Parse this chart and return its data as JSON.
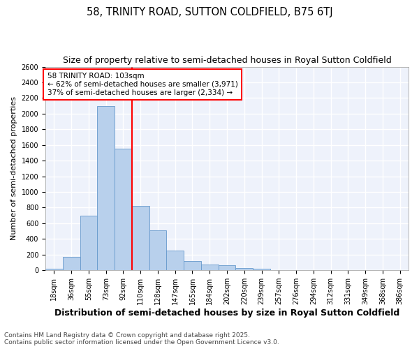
{
  "title": "58, TRINITY ROAD, SUTTON COLDFIELD, B75 6TJ",
  "subtitle": "Size of property relative to semi-detached houses in Royal Sutton Coldfield",
  "xlabel": "Distribution of semi-detached houses by size in Royal Sutton Coldfield",
  "ylabel": "Number of semi-detached properties",
  "footer": "Contains HM Land Registry data © Crown copyright and database right 2025.\nContains public sector information licensed under the Open Government Licence v3.0.",
  "bins": [
    "18sqm",
    "36sqm",
    "55sqm",
    "73sqm",
    "92sqm",
    "110sqm",
    "128sqm",
    "147sqm",
    "165sqm",
    "184sqm",
    "202sqm",
    "220sqm",
    "239sqm",
    "257sqm",
    "276sqm",
    "294sqm",
    "312sqm",
    "331sqm",
    "349sqm",
    "368sqm",
    "386sqm"
  ],
  "values": [
    20,
    175,
    695,
    2100,
    1550,
    820,
    510,
    250,
    120,
    75,
    60,
    30,
    20,
    0,
    0,
    0,
    0,
    0,
    0,
    0,
    0
  ],
  "bar_color": "#b8d0ec",
  "bar_edge_color": "#6699cc",
  "vline_bin_index": 5,
  "vline_color": "red",
  "annotation_title": "58 TRINITY ROAD: 103sqm",
  "annotation_line1": "← 62% of semi-detached houses are smaller (3,971)",
  "annotation_line2": "37% of semi-detached houses are larger (2,334) →",
  "annotation_box_color": "red",
  "ylim": [
    0,
    2600
  ],
  "yticks": [
    0,
    200,
    400,
    600,
    800,
    1000,
    1200,
    1400,
    1600,
    1800,
    2000,
    2200,
    2400,
    2600
  ],
  "background_color": "#eef2fb",
  "grid_color": "#ffffff",
  "title_fontsize": 10.5,
  "subtitle_fontsize": 9,
  "xlabel_fontsize": 9,
  "ylabel_fontsize": 8,
  "tick_fontsize": 7,
  "annotation_fontsize": 7.5,
  "footer_fontsize": 6.5
}
